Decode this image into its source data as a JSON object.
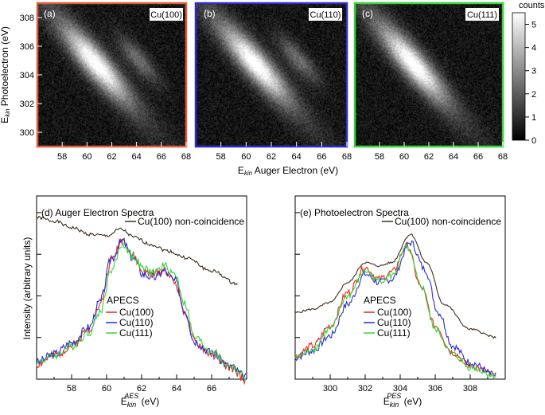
{
  "colors": {
    "cu100": "#e8261f",
    "cu110": "#2b2bd6",
    "cu111": "#35d435",
    "noncoinc": "#3f2f1a"
  },
  "chart_data": [
    {
      "type": "heatmap",
      "id": "a",
      "panel_label": "(a)",
      "sample": "Cu(100)",
      "frame_color": "#e05a3a",
      "xlim": [
        56,
        68
      ],
      "ylim": [
        299,
        309
      ],
      "x_ticks": [
        58,
        60,
        62,
        64,
        66,
        68
      ],
      "y_ticks": [
        300,
        302,
        304,
        306,
        308
      ],
      "secondary_ridge": true,
      "xlabel_main": "E",
      "xlabel_sub": "kin",
      "xlabel_rest": " Auger Electron (eV)",
      "ylabel_main": "E",
      "ylabel_sub": "kin",
      "ylabel_rest": " Photoelectron (eV)"
    },
    {
      "type": "heatmap",
      "id": "b",
      "panel_label": "(b)",
      "sample": "Cu(110)",
      "frame_color": "#2b2bd6",
      "xlim": [
        56,
        68
      ],
      "ylim": [
        299,
        309
      ],
      "x_ticks": [
        58,
        60,
        62,
        64,
        66,
        68
      ],
      "secondary_ridge": true
    },
    {
      "type": "heatmap",
      "id": "c",
      "panel_label": "(c)",
      "sample": "Cu(111)",
      "frame_color": "#35d435",
      "xlim": [
        56,
        68
      ],
      "ylim": [
        299,
        309
      ],
      "x_ticks": [
        58,
        60,
        62,
        64,
        66,
        68
      ],
      "secondary_ridge": false
    },
    {
      "type": "colorbar",
      "title": "counts",
      "range": [
        0,
        5.5
      ],
      "ticks": [
        0,
        1,
        2,
        3,
        4,
        5
      ]
    },
    {
      "type": "line",
      "id": "d",
      "title": "(d) Auger Electron Spectra",
      "xlim": [
        56,
        68
      ],
      "ylim": [
        0,
        1.1
      ],
      "x_ticks": [
        58,
        60,
        62,
        64,
        66
      ],
      "ylabel": "Intensity (arbitrary units)",
      "xlabel_main": "E",
      "xlabel_sub": "kin",
      "xlabel_sup": "AES",
      "xlabel_rest": " (eV)",
      "legend_top": "Cu(100) non-coincidence",
      "legend_group": "APECS",
      "series": [
        {
          "name": "Cu(100) non-coincidence",
          "color": "#3f2f1a",
          "noise": 0.01,
          "seed": 1,
          "x": [
            56,
            57,
            58,
            59,
            60,
            60.8,
            61.6,
            62.5,
            63.5,
            64.5,
            66,
            67.5
          ],
          "values": [
            0.97,
            0.95,
            0.91,
            0.87,
            0.86,
            0.9,
            0.85,
            0.81,
            0.77,
            0.73,
            0.65,
            0.57
          ]
        },
        {
          "name": "Cu(100)",
          "color": "#e8261f",
          "noise": 0.028,
          "seed": 2,
          "x": [
            56,
            57,
            58,
            59,
            59.6,
            60.3,
            60.9,
            61.5,
            62.1,
            62.7,
            63.3,
            63.9,
            64.5,
            65,
            66,
            67,
            68
          ],
          "values": [
            0.09,
            0.14,
            0.2,
            0.3,
            0.44,
            0.72,
            0.84,
            0.74,
            0.64,
            0.63,
            0.66,
            0.58,
            0.4,
            0.22,
            0.15,
            0.07,
            0.0
          ]
        },
        {
          "name": "Cu(110)",
          "color": "#2b2bd6",
          "noise": 0.028,
          "seed": 3,
          "x": [
            56,
            57,
            58,
            59,
            59.6,
            60.3,
            60.9,
            61.5,
            62.1,
            62.7,
            63.3,
            63.9,
            64.5,
            65,
            66,
            67,
            68
          ],
          "values": [
            0.1,
            0.15,
            0.22,
            0.31,
            0.46,
            0.73,
            0.83,
            0.73,
            0.63,
            0.61,
            0.65,
            0.59,
            0.41,
            0.23,
            0.16,
            0.08,
            0.01
          ]
        },
        {
          "name": "Cu(111)",
          "color": "#35d435",
          "noise": 0.025,
          "seed": 4,
          "x": [
            56,
            57,
            58,
            59,
            59.6,
            60.3,
            60.9,
            61.5,
            62.1,
            62.7,
            63.3,
            63.9,
            64.5,
            65,
            66,
            67,
            68
          ],
          "values": [
            0.1,
            0.14,
            0.2,
            0.28,
            0.4,
            0.66,
            0.81,
            0.74,
            0.66,
            0.64,
            0.68,
            0.63,
            0.45,
            0.25,
            0.17,
            0.08,
            0.01
          ]
        }
      ]
    },
    {
      "type": "line",
      "id": "e",
      "title": "(e) Photoelectron Spectra",
      "xlim": [
        298,
        310
      ],
      "ylim": [
        0,
        1.1
      ],
      "x_ticks": [
        300,
        302,
        304,
        306,
        308
      ],
      "xlabel_main": "E",
      "xlabel_sub": "kin",
      "xlabel_sup": "PES",
      "xlabel_rest": " (eV)",
      "legend_top": "Cu(100) non-coincidence",
      "legend_group": "APECS",
      "series": [
        {
          "name": "Cu(100) non-coincidence",
          "color": "#3f2f1a",
          "noise": 0.006,
          "seed": 5,
          "x": [
            298,
            299,
            300,
            301,
            302,
            302.8,
            303.5,
            304.6,
            305.5,
            306.5,
            308,
            309.5
          ],
          "values": [
            0.4,
            0.42,
            0.46,
            0.58,
            0.7,
            0.68,
            0.7,
            0.87,
            0.7,
            0.45,
            0.3,
            0.25
          ]
        },
        {
          "name": "Cu(100)",
          "color": "#e8261f",
          "noise": 0.022,
          "seed": 6,
          "x": [
            298,
            299,
            300,
            301,
            302,
            302.8,
            303.5,
            304.4,
            305.2,
            306,
            307,
            308,
            309.5
          ],
          "values": [
            0.14,
            0.2,
            0.32,
            0.52,
            0.67,
            0.6,
            0.64,
            0.8,
            0.55,
            0.32,
            0.16,
            0.08,
            0.02
          ]
        },
        {
          "name": "Cu(110)",
          "color": "#2b2bd6",
          "noise": 0.022,
          "seed": 7,
          "x": [
            298,
            299,
            300,
            301,
            302,
            302.8,
            303.5,
            304.6,
            305.4,
            306.2,
            307,
            308,
            309.5
          ],
          "values": [
            0.13,
            0.17,
            0.26,
            0.45,
            0.63,
            0.58,
            0.6,
            0.82,
            0.66,
            0.4,
            0.2,
            0.1,
            0.02
          ]
        },
        {
          "name": "Cu(111)",
          "color": "#35d435",
          "noise": 0.02,
          "seed": 8,
          "x": [
            298,
            299,
            300,
            301,
            302,
            302.8,
            303.5,
            304.4,
            305.2,
            306,
            307,
            308,
            309.5
          ],
          "values": [
            0.13,
            0.18,
            0.3,
            0.5,
            0.65,
            0.59,
            0.62,
            0.79,
            0.56,
            0.3,
            0.15,
            0.07,
            0.02
          ]
        }
      ]
    }
  ]
}
